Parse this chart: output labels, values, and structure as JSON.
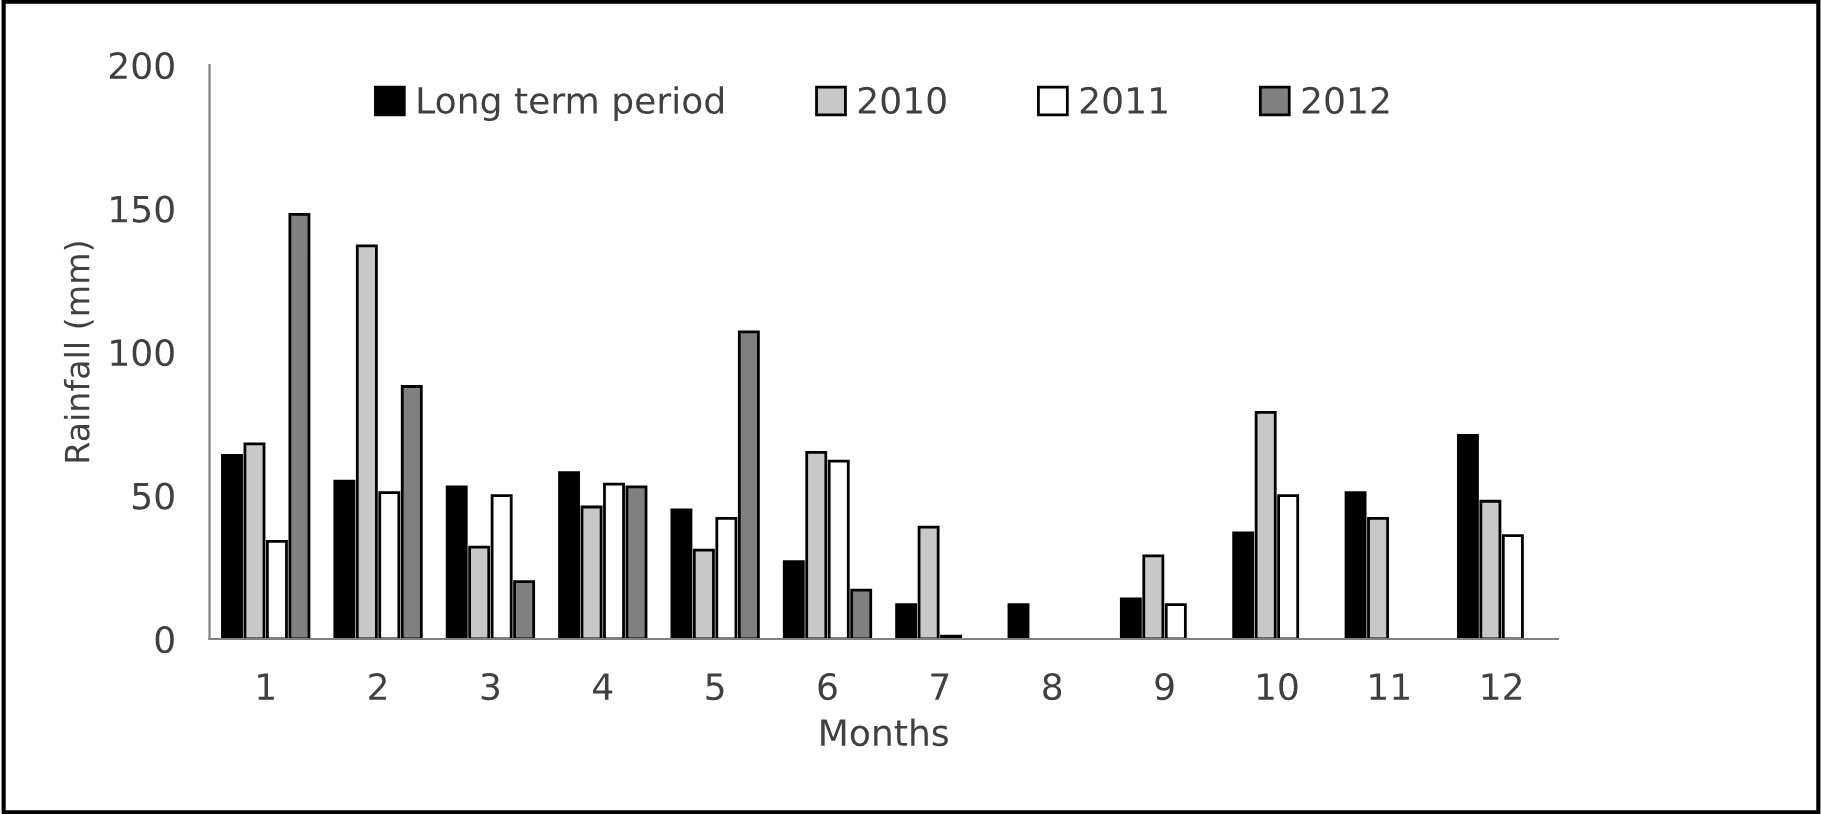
{
  "chart_data": {
    "type": "bar",
    "xlabel": "Months",
    "ylabel": "Rainfall (mm)",
    "categories": [
      "1",
      "2",
      "3",
      "4",
      "5",
      "6",
      "7",
      "8",
      "9",
      "10",
      "11",
      "12"
    ],
    "series": [
      {
        "name": "Long term period",
        "color": "#000000",
        "values": [
          64,
          55,
          53,
          58,
          45,
          27,
          12,
          12,
          14,
          37,
          51,
          71
        ]
      },
      {
        "name": "2010",
        "color": "#c8c8c8",
        "values": [
          68,
          137,
          32,
          46,
          31,
          65,
          39,
          null,
          29,
          79,
          42,
          48
        ]
      },
      {
        "name": "2011",
        "color": "#ffffff",
        "values": [
          34,
          51,
          50,
          54,
          42,
          62,
          1,
          null,
          12,
          50,
          null,
          36
        ]
      },
      {
        "name": "2012",
        "color": "#808080",
        "values": [
          148,
          88,
          20,
          53,
          107,
          17,
          null,
          null,
          null,
          null,
          null,
          null
        ]
      }
    ],
    "ylim": [
      0,
      200
    ],
    "yticks": [
      0,
      50,
      100,
      150,
      200
    ],
    "grid": false,
    "legend": "top"
  }
}
